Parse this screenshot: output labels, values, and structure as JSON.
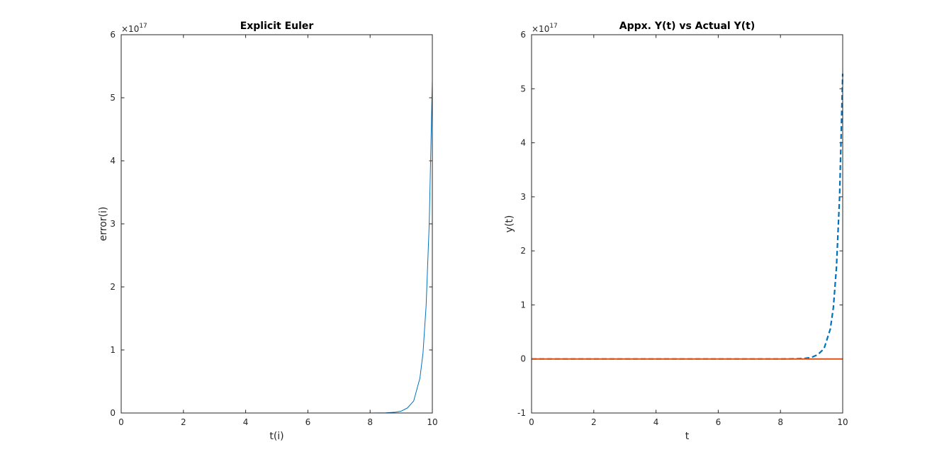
{
  "chart_data": [
    {
      "type": "line",
      "title": "Explicit Euler",
      "xlabel": "t(i)",
      "ylabel": "error(i)",
      "xlim": [
        0,
        10
      ],
      "ylim": [
        0,
        6
      ],
      "y_exponent_base": "×10",
      "y_exponent_power": "17",
      "xticks": [
        "0",
        "2",
        "4",
        "6",
        "8",
        "10"
      ],
      "yticks": [
        "0",
        "1",
        "2",
        "3",
        "4",
        "5",
        "6"
      ],
      "grid": false,
      "series": [
        {
          "color": "#0072bd",
          "style": "solid",
          "x": [
            0,
            1,
            2,
            3,
            4,
            5,
            6,
            7,
            8,
            8.5,
            8.8,
            9.0,
            9.2,
            9.4,
            9.6,
            9.7,
            9.8,
            9.9,
            10.0
          ],
          "y": [
            0,
            0,
            0,
            0,
            0,
            0,
            0,
            0,
            0.0003,
            0.003,
            0.012,
            0.03,
            0.08,
            0.19,
            0.55,
            0.95,
            1.7,
            3.0,
            5.28
          ]
        }
      ]
    },
    {
      "type": "line",
      "title": "Appx. Y(t) vs Actual Y(t)",
      "xlabel": "t",
      "ylabel": "y(t)",
      "xlim": [
        0,
        10
      ],
      "ylim": [
        -1,
        6
      ],
      "y_exponent_base": "×10",
      "y_exponent_power": "17",
      "xticks": [
        "0",
        "2",
        "4",
        "6",
        "8",
        "10"
      ],
      "yticks": [
        "-1",
        "0",
        "1",
        "2",
        "3",
        "4",
        "5",
        "6"
      ],
      "grid": false,
      "series": [
        {
          "color": "#0072bd",
          "style": "dashed",
          "x": [
            0,
            1,
            2,
            3,
            4,
            5,
            6,
            7,
            8,
            8.5,
            8.8,
            9.0,
            9.2,
            9.4,
            9.6,
            9.7,
            9.8,
            9.9,
            10.0
          ],
          "y": [
            0,
            0,
            0,
            0,
            0,
            0,
            0,
            0,
            0.0003,
            0.003,
            0.012,
            0.03,
            0.08,
            0.19,
            0.55,
            0.95,
            1.7,
            3.0,
            5.28
          ]
        },
        {
          "color": "#d95319",
          "style": "solid",
          "x": [
            0,
            10
          ],
          "y": [
            0,
            0
          ]
        }
      ]
    }
  ]
}
